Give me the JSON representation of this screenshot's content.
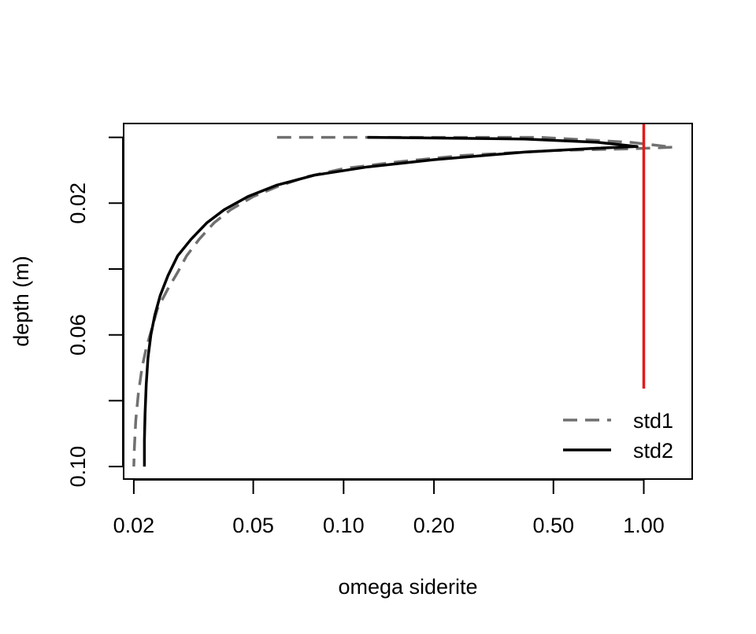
{
  "chart_data": {
    "type": "line",
    "title": "",
    "xlabel": "omega siderite",
    "ylabel": "depth (m)",
    "x_scale": "log",
    "xlim": [
      0.0185,
      1.45
    ],
    "ylim": [
      0.1038,
      -0.0042
    ],
    "x_ticks": [
      {
        "value": 0.02,
        "label": "0.02"
      },
      {
        "value": 0.05,
        "label": "0.05"
      },
      {
        "value": 0.1,
        "label": "0.10"
      },
      {
        "value": 0.2,
        "label": "0.20"
      },
      {
        "value": 0.5,
        "label": "0.50"
      },
      {
        "value": 1.0,
        "label": "1.00"
      }
    ],
    "y_ticks": [
      {
        "value": 0.0,
        "label": ""
      },
      {
        "value": 0.02,
        "label": "0.02"
      },
      {
        "value": 0.04,
        "label": ""
      },
      {
        "value": 0.06,
        "label": "0.06"
      },
      {
        "value": 0.08,
        "label": ""
      },
      {
        "value": 0.1,
        "label": "0.10"
      }
    ],
    "reference_line": {
      "x": 1.0,
      "color": "#e31a1c"
    },
    "legend": {
      "position": "bottom-right",
      "entries": [
        {
          "label": "std1",
          "style": "dashed",
          "color": "#707070"
        },
        {
          "label": "std2",
          "style": "solid",
          "color": "#000000"
        }
      ]
    },
    "series": [
      {
        "name": "std1",
        "color": "#707070",
        "dash": "dashed",
        "points": [
          [
            0.06,
            0.0
          ],
          [
            0.45,
            0.0
          ],
          [
            0.9,
            0.0015
          ],
          [
            1.25,
            0.003
          ],
          [
            0.9,
            0.0035
          ],
          [
            0.5,
            0.004
          ],
          [
            0.25,
            0.0055
          ],
          [
            0.15,
            0.0075
          ],
          [
            0.1,
            0.0095
          ],
          [
            0.075,
            0.012
          ],
          [
            0.06,
            0.015
          ],
          [
            0.05,
            0.018
          ],
          [
            0.042,
            0.022
          ],
          [
            0.037,
            0.026
          ],
          [
            0.033,
            0.031
          ],
          [
            0.03,
            0.036
          ],
          [
            0.028,
            0.041
          ],
          [
            0.026,
            0.046
          ],
          [
            0.024,
            0.052
          ],
          [
            0.023,
            0.058
          ],
          [
            0.022,
            0.064
          ],
          [
            0.0213,
            0.07
          ],
          [
            0.0207,
            0.078
          ],
          [
            0.0203,
            0.086
          ],
          [
            0.0201,
            0.094
          ],
          [
            0.02,
            0.1
          ]
        ]
      },
      {
        "name": "std2",
        "color": "#000000",
        "dash": "solid",
        "points": [
          [
            0.12,
            0.0
          ],
          [
            0.4,
            0.0005
          ],
          [
            0.7,
            0.0015
          ],
          [
            0.95,
            0.0028
          ],
          [
            0.7,
            0.0033
          ],
          [
            0.4,
            0.0045
          ],
          [
            0.2,
            0.0068
          ],
          [
            0.12,
            0.009
          ],
          [
            0.08,
            0.0115
          ],
          [
            0.06,
            0.0145
          ],
          [
            0.048,
            0.018
          ],
          [
            0.04,
            0.022
          ],
          [
            0.035,
            0.026
          ],
          [
            0.031,
            0.031
          ],
          [
            0.028,
            0.036
          ],
          [
            0.026,
            0.042
          ],
          [
            0.0245,
            0.048
          ],
          [
            0.0235,
            0.054
          ],
          [
            0.0228,
            0.06
          ],
          [
            0.0223,
            0.067
          ],
          [
            0.022,
            0.075
          ],
          [
            0.0218,
            0.084
          ],
          [
            0.0217,
            0.092
          ],
          [
            0.0217,
            0.1
          ]
        ]
      }
    ]
  }
}
